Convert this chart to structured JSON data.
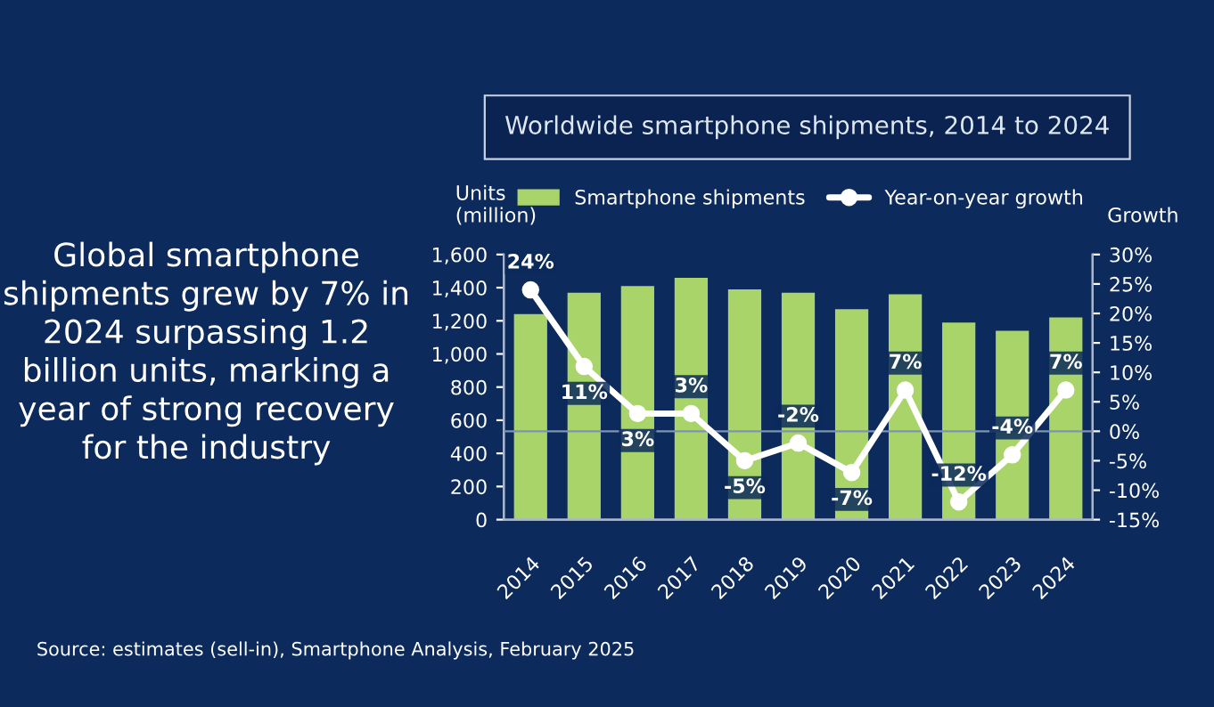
{
  "chart_data": {
    "type": "bar",
    "title": "Worldwide smartphone shipments, 2014 to 2024",
    "annotations": [
      "Global smartphone shipments grew by 7% in 2024 surpassing 1.2 billion units, marking a year of strong recovery for the industry",
      "Source: estimates (sell-in), Smartphone Analysis, February 2025"
    ],
    "ylabel": "Units\n(million)",
    "y2label": "Growth",
    "categories": [
      "2014",
      "2015",
      "2016",
      "2017",
      "2018",
      "2019",
      "2020",
      "2021",
      "2022",
      "2023",
      "2024"
    ],
    "series": [
      {
        "name": "Smartphone shipments",
        "color": "#a9d46a",
        "values": [
          1240,
          1370,
          1410,
          1460,
          1390,
          1370,
          1270,
          1360,
          1190,
          1140,
          1220
        ]
      },
      {
        "name": "Year-on-year growth",
        "type": "line",
        "axis": "y2",
        "color": "#ffffff",
        "marker": "circle",
        "values": [
          24,
          11,
          3,
          3,
          -5,
          -2,
          -7,
          7,
          -12,
          -4,
          7
        ],
        "value_labels": [
          "24%",
          "11%",
          "3%",
          "3%",
          "-5%",
          "-2%",
          "-7%",
          "7%",
          "-12%",
          "-4%",
          "7%"
        ]
      }
    ],
    "ylim": [
      0,
      1600
    ],
    "yticks": [
      0,
      200,
      400,
      600,
      800,
      {
        "value": 1000,
        "label": "1,000"
      },
      {
        "value": 1200,
        "label": "1,200"
      },
      {
        "value": 1400,
        "label": "1,400"
      },
      {
        "value": 1600,
        "label": "1,600"
      }
    ],
    "y2lim": [
      -15,
      30
    ],
    "y2ticks": [
      {
        "value": -15,
        "label": "-15%"
      },
      {
        "value": -10,
        "label": "-10%"
      },
      {
        "value": -5,
        "label": "-5%"
      },
      {
        "value": 0,
        "label": "0%"
      },
      {
        "value": 5,
        "label": "5%"
      },
      {
        "value": 10,
        "label": "10%"
      },
      {
        "value": 15,
        "label": "15%"
      },
      {
        "value": 20,
        "label": "20%"
      },
      {
        "value": 25,
        "label": "25%"
      },
      {
        "value": 30,
        "label": "30%"
      }
    ],
    "ref_lines": [
      {
        "axis": "y2",
        "value": 0,
        "color": "#7f93b5"
      }
    ],
    "grid": false,
    "legend": "top"
  }
}
